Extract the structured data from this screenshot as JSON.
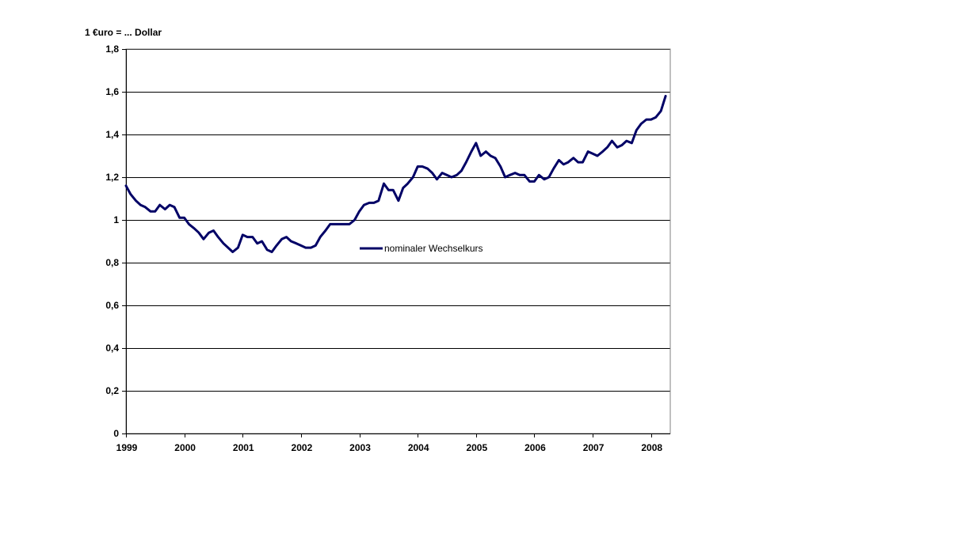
{
  "chart_data": {
    "type": "line",
    "title": "",
    "ylabel": "1 €uro = ... Dollar",
    "xlabel": "",
    "ylim": [
      0,
      1.8
    ],
    "yticks": [
      {
        "value": 0,
        "label": "0"
      },
      {
        "value": 0.2,
        "label": "0,2"
      },
      {
        "value": 0.4,
        "label": "0,4"
      },
      {
        "value": 0.6,
        "label": "0,6"
      },
      {
        "value": 0.8,
        "label": "0,8"
      },
      {
        "value": 1.0,
        "label": "1"
      },
      {
        "value": 1.2,
        "label": "1,2"
      },
      {
        "value": 1.4,
        "label": "1,4"
      },
      {
        "value": 1.6,
        "label": "1,6"
      },
      {
        "value": 1.8,
        "label": "1,8"
      }
    ],
    "xlim": [
      1999.0,
      2008.33
    ],
    "xticks": [
      {
        "value": 1999,
        "label": "1999"
      },
      {
        "value": 2000,
        "label": "2000"
      },
      {
        "value": 2001,
        "label": "2001"
      },
      {
        "value": 2002,
        "label": "2002"
      },
      {
        "value": 2003,
        "label": "2003"
      },
      {
        "value": 2004,
        "label": "2004"
      },
      {
        "value": 2005,
        "label": "2005"
      },
      {
        "value": 2006,
        "label": "2006"
      },
      {
        "value": 2007,
        "label": "2007"
      },
      {
        "value": 2008,
        "label": "2008"
      }
    ],
    "grid": true,
    "legend_position": "center",
    "series": [
      {
        "name": "nominaler Wechselkurs",
        "color": "#000066",
        "points": [
          [
            1999.0,
            1.16
          ],
          [
            1999.08,
            1.12
          ],
          [
            1999.17,
            1.09
          ],
          [
            1999.25,
            1.07
          ],
          [
            1999.33,
            1.06
          ],
          [
            1999.42,
            1.04
          ],
          [
            1999.5,
            1.04
          ],
          [
            1999.58,
            1.07
          ],
          [
            1999.67,
            1.05
          ],
          [
            1999.75,
            1.07
          ],
          [
            1999.83,
            1.06
          ],
          [
            1999.92,
            1.01
          ],
          [
            2000.0,
            1.01
          ],
          [
            2000.08,
            0.98
          ],
          [
            2000.17,
            0.96
          ],
          [
            2000.25,
            0.94
          ],
          [
            2000.33,
            0.91
          ],
          [
            2000.42,
            0.94
          ],
          [
            2000.5,
            0.95
          ],
          [
            2000.58,
            0.92
          ],
          [
            2000.67,
            0.89
          ],
          [
            2000.75,
            0.87
          ],
          [
            2000.83,
            0.85
          ],
          [
            2000.92,
            0.87
          ],
          [
            2001.0,
            0.93
          ],
          [
            2001.08,
            0.92
          ],
          [
            2001.17,
            0.92
          ],
          [
            2001.25,
            0.89
          ],
          [
            2001.33,
            0.9
          ],
          [
            2001.42,
            0.86
          ],
          [
            2001.5,
            0.85
          ],
          [
            2001.58,
            0.88
          ],
          [
            2001.67,
            0.91
          ],
          [
            2001.75,
            0.92
          ],
          [
            2001.83,
            0.9
          ],
          [
            2001.92,
            0.89
          ],
          [
            2002.0,
            0.88
          ],
          [
            2002.08,
            0.87
          ],
          [
            2002.17,
            0.87
          ],
          [
            2002.25,
            0.88
          ],
          [
            2002.33,
            0.92
          ],
          [
            2002.42,
            0.95
          ],
          [
            2002.5,
            0.98
          ],
          [
            2002.58,
            0.98
          ],
          [
            2002.67,
            0.98
          ],
          [
            2002.75,
            0.98
          ],
          [
            2002.83,
            0.98
          ],
          [
            2002.92,
            1.0
          ],
          [
            2003.0,
            1.04
          ],
          [
            2003.08,
            1.07
          ],
          [
            2003.17,
            1.08
          ],
          [
            2003.25,
            1.08
          ],
          [
            2003.33,
            1.09
          ],
          [
            2003.42,
            1.17
          ],
          [
            2003.5,
            1.14
          ],
          [
            2003.58,
            1.14
          ],
          [
            2003.67,
            1.09
          ],
          [
            2003.75,
            1.15
          ],
          [
            2003.83,
            1.17
          ],
          [
            2003.92,
            1.2
          ],
          [
            2004.0,
            1.25
          ],
          [
            2004.08,
            1.25
          ],
          [
            2004.17,
            1.24
          ],
          [
            2004.25,
            1.22
          ],
          [
            2004.33,
            1.19
          ],
          [
            2004.42,
            1.22
          ],
          [
            2004.5,
            1.21
          ],
          [
            2004.58,
            1.2
          ],
          [
            2004.67,
            1.21
          ],
          [
            2004.75,
            1.23
          ],
          [
            2004.83,
            1.27
          ],
          [
            2004.92,
            1.32
          ],
          [
            2005.0,
            1.36
          ],
          [
            2005.08,
            1.3
          ],
          [
            2005.17,
            1.32
          ],
          [
            2005.25,
            1.3
          ],
          [
            2005.33,
            1.29
          ],
          [
            2005.42,
            1.25
          ],
          [
            2005.5,
            1.2
          ],
          [
            2005.58,
            1.21
          ],
          [
            2005.67,
            1.22
          ],
          [
            2005.75,
            1.21
          ],
          [
            2005.83,
            1.21
          ],
          [
            2005.92,
            1.18
          ],
          [
            2006.0,
            1.18
          ],
          [
            2006.08,
            1.21
          ],
          [
            2006.17,
            1.19
          ],
          [
            2006.25,
            1.2
          ],
          [
            2006.33,
            1.24
          ],
          [
            2006.42,
            1.28
          ],
          [
            2006.5,
            1.26
          ],
          [
            2006.58,
            1.27
          ],
          [
            2006.67,
            1.29
          ],
          [
            2006.75,
            1.27
          ],
          [
            2006.83,
            1.27
          ],
          [
            2006.92,
            1.32
          ],
          [
            2007.0,
            1.31
          ],
          [
            2007.08,
            1.3
          ],
          [
            2007.17,
            1.32
          ],
          [
            2007.25,
            1.34
          ],
          [
            2007.33,
            1.37
          ],
          [
            2007.42,
            1.34
          ],
          [
            2007.5,
            1.35
          ],
          [
            2007.58,
            1.37
          ],
          [
            2007.67,
            1.36
          ],
          [
            2007.75,
            1.42
          ],
          [
            2007.83,
            1.45
          ],
          [
            2007.92,
            1.47
          ],
          [
            2008.0,
            1.47
          ],
          [
            2008.08,
            1.48
          ],
          [
            2008.17,
            1.51
          ],
          [
            2008.25,
            1.58
          ]
        ]
      }
    ]
  }
}
